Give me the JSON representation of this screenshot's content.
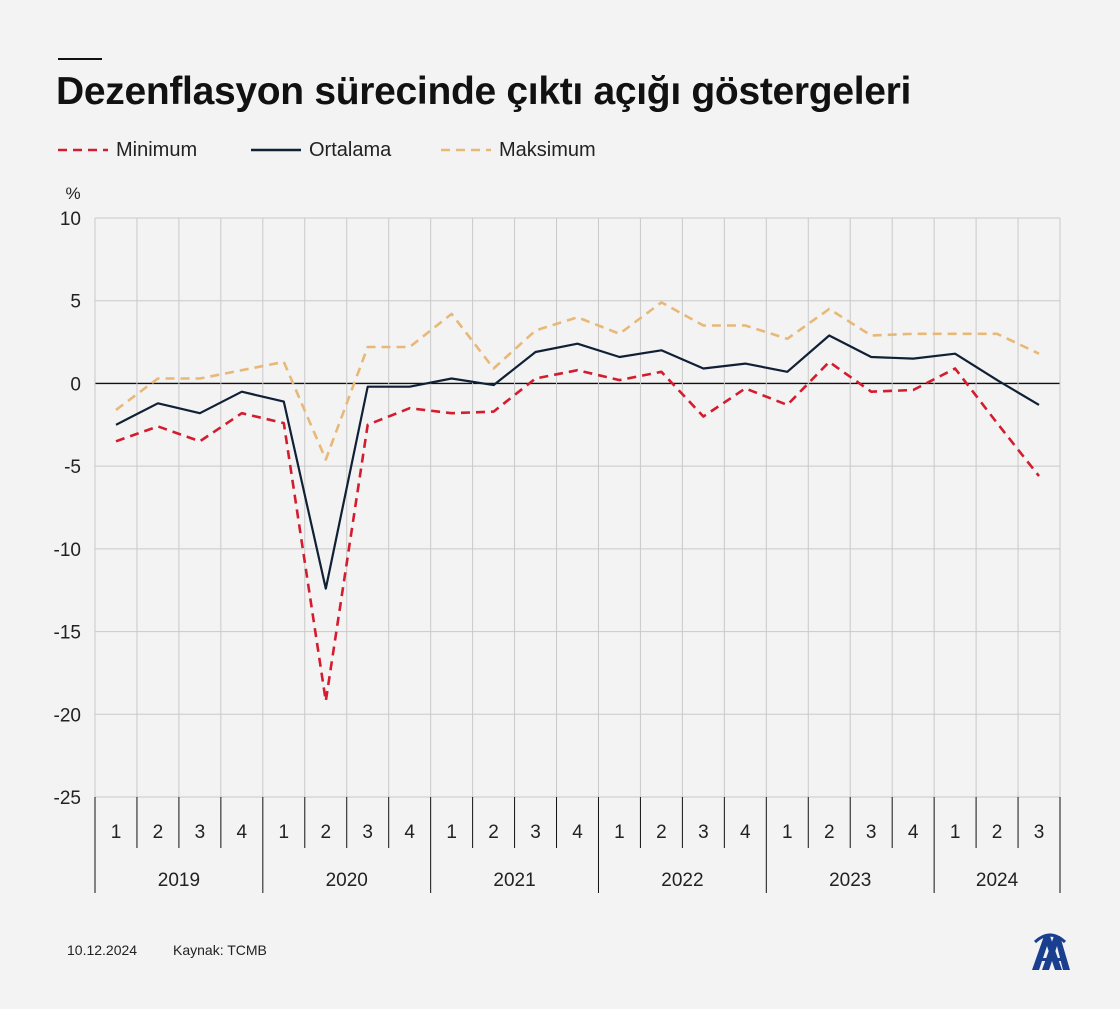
{
  "title": "Dezenflasyon sürecinde çıktı açığı göstergeleri",
  "legend": {
    "min_label": "Minimum",
    "avg_label": "Ortalama",
    "max_label": "Maksimum"
  },
  "footer": {
    "date": "10.12.2024",
    "source": "Kaynak: TCMB"
  },
  "logo_icon": "anadolu-agency-logo",
  "chart_data": {
    "type": "line",
    "y_unit_label": "%",
    "ylim": [
      -25,
      10
    ],
    "yticks": [
      10,
      5,
      0,
      -5,
      -10,
      -15,
      -20,
      -25
    ],
    "grid": true,
    "legend_position": "top-left",
    "categories": [
      "1",
      "2",
      "3",
      "4",
      "1",
      "2",
      "3",
      "4",
      "1",
      "2",
      "3",
      "4",
      "1",
      "2",
      "3",
      "4",
      "1",
      "2",
      "3",
      "4",
      "1",
      "2",
      "3"
    ],
    "year_groups": [
      {
        "label": "2019",
        "count": 4
      },
      {
        "label": "2020",
        "count": 4
      },
      {
        "label": "2021",
        "count": 4
      },
      {
        "label": "2022",
        "count": 4
      },
      {
        "label": "2023",
        "count": 4
      },
      {
        "label": "2024",
        "count": 3
      }
    ],
    "series": [
      {
        "name": "Minimum",
        "color": "#d31d2f",
        "style": "dashed",
        "values": [
          -3.5,
          -2.6,
          -3.5,
          -1.8,
          -2.4,
          -19.2,
          -2.5,
          -1.5,
          -1.8,
          -1.7,
          0.3,
          0.8,
          0.2,
          0.7,
          -2.0,
          -0.3,
          -1.3,
          1.3,
          -0.5,
          -0.4,
          0.9,
          -2.4,
          -5.6
        ]
      },
      {
        "name": "Ortalama",
        "color": "#102035",
        "style": "solid",
        "values": [
          -2.5,
          -1.2,
          -1.8,
          -0.5,
          -1.1,
          -12.4,
          -0.2,
          -0.2,
          0.3,
          -0.1,
          1.9,
          2.4,
          1.6,
          2.0,
          0.9,
          1.2,
          0.7,
          2.9,
          1.6,
          1.5,
          1.8,
          0.2,
          -1.3
        ]
      },
      {
        "name": "Maksimum",
        "color": "#e8b878",
        "style": "dashed",
        "values": [
          -1.6,
          0.3,
          0.3,
          0.8,
          1.3,
          -4.6,
          2.2,
          2.2,
          4.2,
          0.9,
          3.2,
          4.0,
          3.0,
          4.9,
          3.5,
          3.5,
          2.7,
          4.5,
          2.9,
          3.0,
          3.0,
          3.0,
          1.8
        ]
      }
    ]
  }
}
